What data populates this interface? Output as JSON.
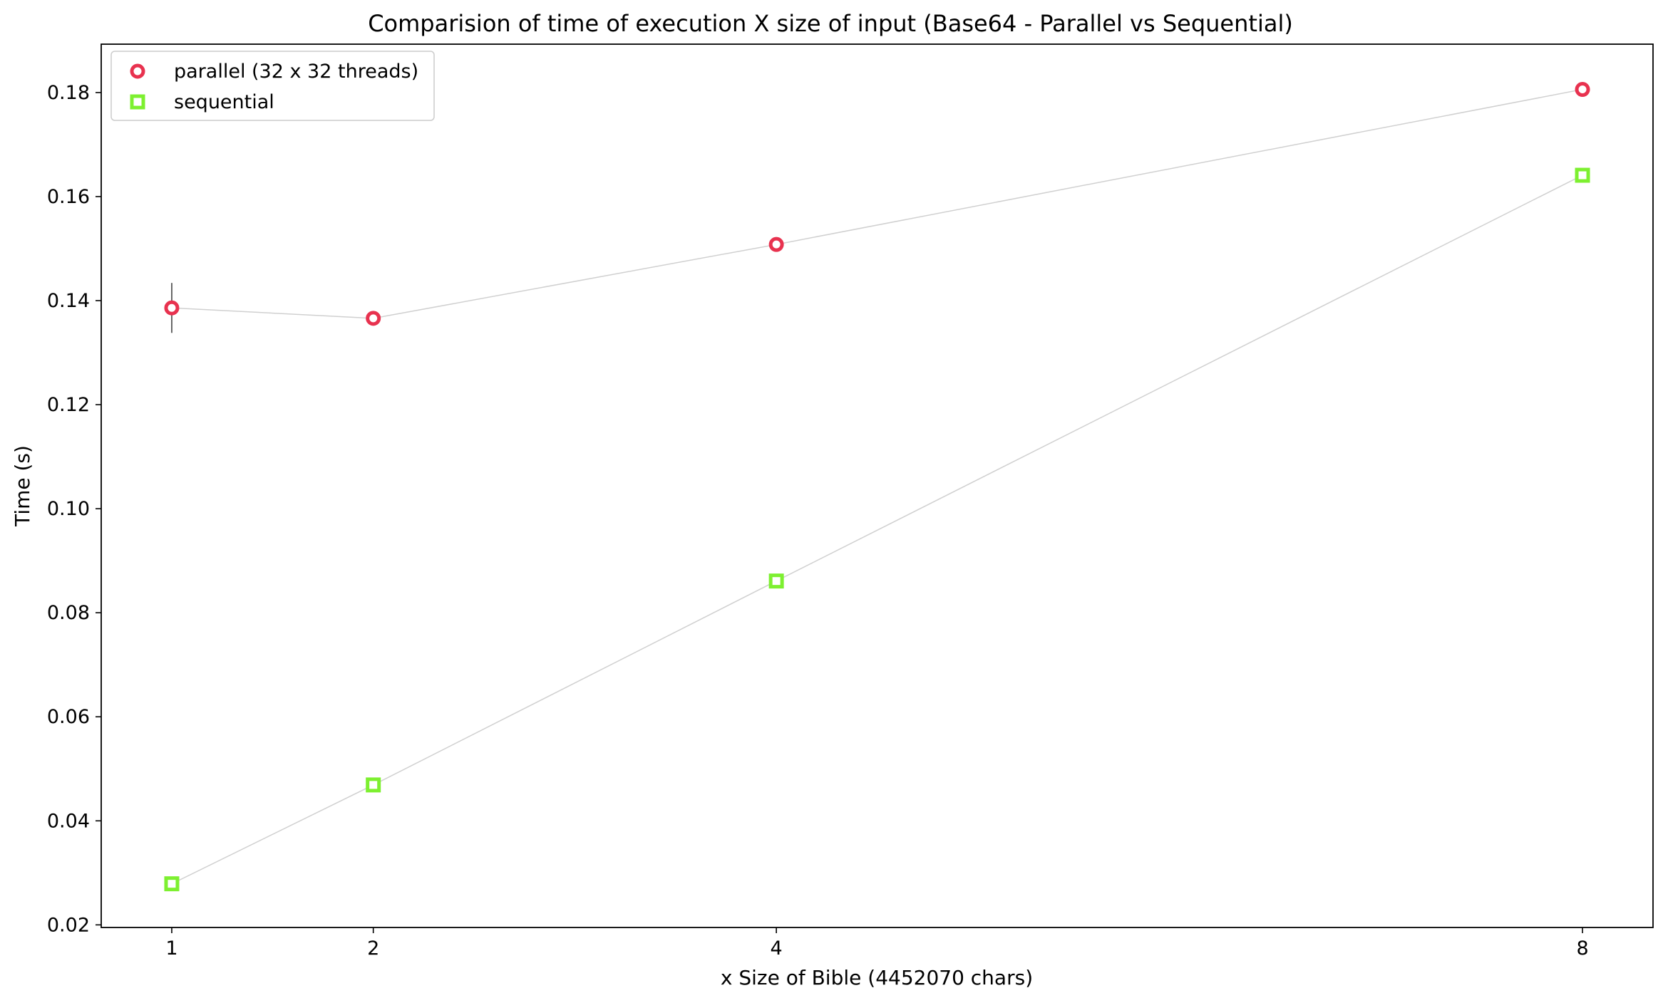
{
  "chart_data": {
    "type": "scatter",
    "title": "Comparision of time of execution X size of input (Base64  - Parallel vs Sequential)",
    "xlabel": "x Size of Bible (4452070 chars)",
    "ylabel": "Time (s)",
    "x": [
      1,
      2,
      4,
      8
    ],
    "x_ticks": [
      "1",
      "2",
      "4",
      "8"
    ],
    "y_ticks": [
      "0.02",
      "0.04",
      "0.06",
      "0.08",
      "0.10",
      "0.12",
      "0.14",
      "0.16",
      "0.18"
    ],
    "xlim": [
      0.65,
      8.35
    ],
    "ylim": [
      0.0195,
      0.1893
    ],
    "grid": false,
    "legend_position": "top-left",
    "series": [
      {
        "name": "parallel (32 x 32 threads)",
        "color": "#e8324f",
        "marker": "circle",
        "values": [
          0.1386,
          0.1366,
          0.1508,
          0.1806
        ],
        "error": [
          0.0048,
          0.0005,
          0.0004,
          0.0004
        ]
      },
      {
        "name": "sequential",
        "color": "#7df030",
        "marker": "square",
        "values": [
          0.0279,
          0.0469,
          0.0861,
          0.1641
        ],
        "error": [
          0.0004,
          0.0004,
          0.0004,
          0.0004
        ]
      }
    ],
    "connector_color": "#d0d0d0"
  }
}
